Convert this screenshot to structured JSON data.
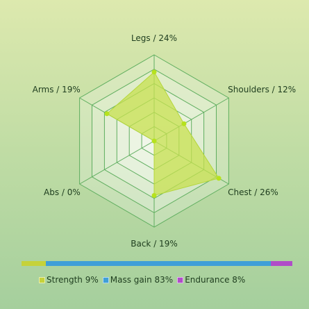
{
  "chart_data": {
    "type": "radar",
    "axes": [
      "Legs",
      "Shoulders",
      "Chest",
      "Back",
      "Abs",
      "Arms"
    ],
    "values": [
      24,
      12,
      26,
      19,
      0,
      19
    ],
    "axis_labels": [
      "Legs / 24%",
      "Shoulders / 12%",
      "Chest / 26%",
      "Back / 19%",
      "Abs / 0%",
      "Arms / 19%"
    ],
    "rmax": 30,
    "rings": 6,
    "colors": {
      "grid": "#5fae5f",
      "fill": "#c7e04f",
      "point": "#b6e21e"
    }
  },
  "legend": {
    "items": [
      {
        "label": "Strength 9%",
        "color": "#c6d23a",
        "value": 9
      },
      {
        "label": "Mass gain 83%",
        "color": "#3f9fd8",
        "value": 83
      },
      {
        "label": "Endurance 8%",
        "color": "#b04dc8",
        "value": 8
      }
    ]
  }
}
